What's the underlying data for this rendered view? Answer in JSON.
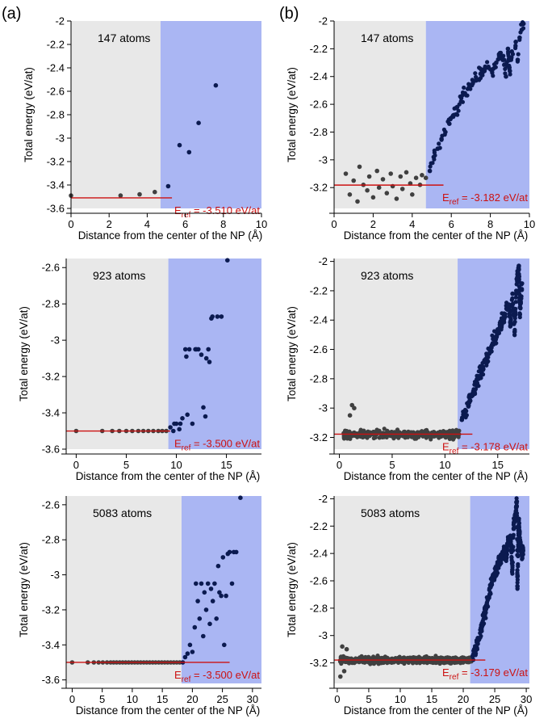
{
  "panel_labels": [
    "(a)",
    "(b)"
  ],
  "chart_data": [
    {
      "id": "a-147",
      "panel": "(a)",
      "type": "scatter",
      "title": "147 atoms",
      "xlabel": "Distance from the center of the NP (Å)",
      "ylabel": "Total energy (eV/at)",
      "xlim": [
        0,
        10
      ],
      "ylim": [
        -3.6,
        -2.0
      ],
      "xticks": [
        0,
        2,
        4,
        6,
        8,
        10
      ],
      "yticks": [
        -3.6,
        -3.4,
        -3.2,
        -3.0,
        -2.8,
        -2.6,
        -2.4,
        -2.2,
        -2.0
      ],
      "core_region_x": [
        0,
        4.7
      ],
      "eref": -3.51,
      "eref_text": "-3.510 eV/at",
      "eref_label_prefix": "E",
      "eref_label_sub": "ref",
      "eref_line_x": [
        0,
        5.3
      ],
      "points": [
        [
          0.0,
          -3.49
        ],
        [
          2.6,
          -3.49
        ],
        [
          3.6,
          -3.48
        ],
        [
          4.4,
          -3.46
        ],
        [
          5.1,
          -3.41
        ],
        [
          5.7,
          -3.06
        ],
        [
          6.2,
          -3.12
        ],
        [
          6.7,
          -2.87
        ],
        [
          7.6,
          -2.55
        ]
      ]
    },
    {
      "id": "b-147",
      "panel": "(b)",
      "type": "scatter",
      "title": "147 atoms",
      "xlabel": "Distance from the center of the NP (Å)",
      "ylabel": "Total energy (eV/at)",
      "xlim": [
        0,
        10
      ],
      "ylim": [
        -3.35,
        -2.0
      ],
      "xticks": [
        0,
        2,
        4,
        6,
        8,
        10
      ],
      "yticks": [
        -3.2,
        -3.0,
        -2.8,
        -2.6,
        -2.4,
        -2.2,
        -2.0
      ],
      "core_region_x": [
        0,
        4.7
      ],
      "eref": -3.182,
      "eref_text": "-3.182 eV/at",
      "eref_label_prefix": "E",
      "eref_label_sub": "ref",
      "eref_line_x": [
        0,
        5.6
      ],
      "points": [
        [
          0.6,
          -3.1
        ],
        [
          0.8,
          -3.25
        ],
        [
          1.0,
          -3.15
        ],
        [
          1.2,
          -3.3
        ],
        [
          1.3,
          -3.05
        ],
        [
          1.5,
          -3.18
        ],
        [
          1.7,
          -3.22
        ],
        [
          1.8,
          -3.12
        ],
        [
          2.0,
          -3.27
        ],
        [
          2.2,
          -3.08
        ],
        [
          2.3,
          -3.2
        ],
        [
          2.5,
          -3.14
        ],
        [
          2.7,
          -3.24
        ],
        [
          2.9,
          -3.1
        ],
        [
          3.0,
          -3.19
        ],
        [
          3.2,
          -3.28
        ],
        [
          3.4,
          -3.12
        ],
        [
          3.5,
          -3.21
        ],
        [
          3.7,
          -3.09
        ],
        [
          3.9,
          -3.17
        ],
        [
          4.0,
          -3.25
        ],
        [
          4.2,
          -3.13
        ],
        [
          4.4,
          -3.18
        ],
        [
          4.5,
          -3.11
        ],
        [
          4.7,
          -3.13
        ],
        [
          4.9,
          -3.08
        ],
        [
          5.1,
          -2.98
        ],
        [
          5.3,
          -2.92
        ],
        [
          5.5,
          -2.85
        ],
        [
          5.7,
          -2.8
        ],
        [
          5.9,
          -2.74
        ],
        [
          6.1,
          -2.68
        ],
        [
          6.3,
          -2.62
        ],
        [
          6.5,
          -2.58
        ],
        [
          6.7,
          -2.52
        ],
        [
          6.9,
          -2.48
        ],
        [
          7.1,
          -2.45
        ],
        [
          7.3,
          -2.42
        ],
        [
          7.5,
          -2.38
        ],
        [
          7.7,
          -2.36
        ],
        [
          7.9,
          -2.33
        ],
        [
          8.1,
          -2.35
        ],
        [
          8.3,
          -2.3
        ],
        [
          8.5,
          -2.25
        ],
        [
          8.7,
          -2.28
        ],
        [
          8.9,
          -2.2
        ],
        [
          9.1,
          -2.22
        ],
        [
          9.3,
          -2.15
        ],
        [
          9.5,
          -2.12
        ],
        [
          9.7,
          -2.02
        ],
        [
          9.0,
          -2.36
        ],
        [
          8.8,
          -2.4
        ],
        [
          9.4,
          -2.28
        ]
      ]
    },
    {
      "id": "a-923",
      "panel": "(a)",
      "type": "scatter",
      "title": "923 atoms",
      "xlabel": "Distance from the center of the NP (Å)",
      "ylabel": "Total energy (eV/at)",
      "xlim": [
        -1,
        18.5
      ],
      "ylim": [
        -3.6,
        -2.55
      ],
      "xticks": [
        0,
        5,
        10,
        15
      ],
      "yticks": [
        -3.6,
        -3.4,
        -3.2,
        -3.0,
        -2.8,
        -2.6
      ],
      "core_region_x": [
        -1,
        9.2
      ],
      "eref": -3.5,
      "eref_text": "-3.500 eV/at",
      "eref_label_prefix": "E",
      "eref_label_sub": "ref",
      "eref_line_x": [
        -1,
        9.4
      ],
      "points": [
        [
          0.0,
          -3.5
        ],
        [
          2.6,
          -3.5
        ],
        [
          3.6,
          -3.5
        ],
        [
          4.3,
          -3.5
        ],
        [
          5.0,
          -3.5
        ],
        [
          5.6,
          -3.5
        ],
        [
          6.2,
          -3.5
        ],
        [
          6.7,
          -3.5
        ],
        [
          7.2,
          -3.5
        ],
        [
          7.7,
          -3.5
        ],
        [
          8.2,
          -3.5
        ],
        [
          8.6,
          -3.5
        ],
        [
          9.0,
          -3.5
        ],
        [
          9.4,
          -3.48
        ],
        [
          9.7,
          -3.5
        ],
        [
          10.0,
          -3.46
        ],
        [
          10.3,
          -3.49
        ],
        [
          10.6,
          -3.43
        ],
        [
          10.9,
          -3.05
        ],
        [
          11.1,
          -3.41
        ],
        [
          11.3,
          -3.05
        ],
        [
          11.6,
          -3.46
        ],
        [
          11.9,
          -3.05
        ],
        [
          12.2,
          -3.05
        ],
        [
          12.5,
          -3.08
        ],
        [
          12.7,
          -3.37
        ],
        [
          13.0,
          -3.1
        ],
        [
          13.2,
          -3.05
        ],
        [
          13.5,
          -2.88
        ],
        [
          13.6,
          -2.87
        ],
        [
          14.1,
          -2.87
        ],
        [
          14.5,
          -2.87
        ],
        [
          15.1,
          -2.56
        ],
        [
          9.8,
          -3.46
        ],
        [
          10.4,
          -3.46
        ],
        [
          12.9,
          -3.42
        ],
        [
          11.0,
          -3.09
        ],
        [
          12.0,
          -3.05
        ],
        [
          13.3,
          -3.12
        ]
      ]
    },
    {
      "id": "b-923",
      "panel": "(b)",
      "type": "scatter",
      "title": "923 atoms",
      "xlabel": "Distance from the center of the NP (Å)",
      "ylabel": "Total energy (eV/at)",
      "xlim": [
        -0.5,
        18
      ],
      "ylim": [
        -3.28,
        -1.98
      ],
      "xticks": [
        0,
        5,
        10,
        15
      ],
      "yticks": [
        -3.2,
        -3.0,
        -2.8,
        -2.6,
        -2.4,
        -2.2,
        -2.0
      ],
      "core_region_x": [
        -0.5,
        11.2
      ],
      "eref": -3.178,
      "eref_text": "-3.178 eV/at",
      "eref_label_prefix": "E",
      "eref_label_sub": "ref",
      "eref_line_x": [
        -0.5,
        12.6
      ],
      "points": [
        [
          1.0,
          -3.05
        ],
        [
          1.2,
          -2.98
        ],
        [
          1.4,
          -3.0
        ],
        [
          11.6,
          -3.08
        ],
        [
          12.0,
          -3.02
        ],
        [
          12.4,
          -2.95
        ],
        [
          12.8,
          -2.88
        ],
        [
          13.2,
          -2.8
        ],
        [
          13.6,
          -2.72
        ],
        [
          14.0,
          -2.65
        ],
        [
          14.4,
          -2.58
        ],
        [
          14.8,
          -2.52
        ],
        [
          15.2,
          -2.45
        ],
        [
          15.6,
          -2.38
        ],
        [
          16.0,
          -2.3
        ],
        [
          16.4,
          -2.22
        ],
        [
          16.8,
          -2.12
        ],
        [
          17.0,
          -2.03
        ],
        [
          17.3,
          -2.15
        ],
        [
          16.2,
          -2.44
        ],
        [
          16.6,
          -2.48
        ],
        [
          17.1,
          -2.36
        ]
      ]
    },
    {
      "id": "a-5083",
      "panel": "(a)",
      "type": "scatter",
      "title": "5083 atoms",
      "xlabel": "Distance from the center of the NP (Å)",
      "ylabel": "Total energy (eV/at)",
      "xlim": [
        -1,
        31.5
      ],
      "ylim": [
        -3.62,
        -2.55
      ],
      "xticks": [
        0,
        5,
        10,
        15,
        20,
        25,
        30
      ],
      "yticks": [
        -3.6,
        -3.4,
        -3.2,
        -3.0,
        -2.8,
        -2.6
      ],
      "core_region_x": [
        -1,
        18.2
      ],
      "eref": -3.5,
      "eref_text": "-3.500 eV/at",
      "eref_label_prefix": "E",
      "eref_label_sub": "ref",
      "eref_line_x": [
        -1,
        26.2
      ],
      "points": [
        [
          0.0,
          -3.5
        ],
        [
          2.6,
          -3.5
        ],
        [
          3.6,
          -3.5
        ],
        [
          4.4,
          -3.5
        ],
        [
          5.1,
          -3.5
        ],
        [
          5.8,
          -3.5
        ],
        [
          6.4,
          -3.5
        ],
        [
          6.9,
          -3.5
        ],
        [
          7.4,
          -3.5
        ],
        [
          7.9,
          -3.5
        ],
        [
          8.4,
          -3.5
        ],
        [
          8.9,
          -3.5
        ],
        [
          9.4,
          -3.5
        ],
        [
          9.9,
          -3.5
        ],
        [
          10.4,
          -3.5
        ],
        [
          10.9,
          -3.5
        ],
        [
          11.4,
          -3.5
        ],
        [
          11.9,
          -3.5
        ],
        [
          12.4,
          -3.5
        ],
        [
          12.9,
          -3.5
        ],
        [
          13.4,
          -3.5
        ],
        [
          13.9,
          -3.5
        ],
        [
          14.4,
          -3.5
        ],
        [
          14.9,
          -3.5
        ],
        [
          15.4,
          -3.5
        ],
        [
          15.9,
          -3.5
        ],
        [
          16.4,
          -3.5
        ],
        [
          16.9,
          -3.5
        ],
        [
          17.4,
          -3.5
        ],
        [
          17.9,
          -3.5
        ],
        [
          18.4,
          -3.5
        ],
        [
          18.8,
          -3.47
        ],
        [
          19.2,
          -3.45
        ],
        [
          19.6,
          -3.4
        ],
        [
          20.0,
          -3.44
        ],
        [
          20.4,
          -3.3
        ],
        [
          20.6,
          -3.05
        ],
        [
          20.9,
          -3.15
        ],
        [
          21.2,
          -3.25
        ],
        [
          21.5,
          -3.05
        ],
        [
          21.8,
          -3.35
        ],
        [
          22.0,
          -3.1
        ],
        [
          22.3,
          -3.2
        ],
        [
          22.6,
          -3.05
        ],
        [
          22.9,
          -3.28
        ],
        [
          23.1,
          -3.08
        ],
        [
          23.4,
          -3.15
        ],
        [
          23.7,
          -3.05
        ],
        [
          24.0,
          -3.25
        ],
        [
          24.3,
          -2.95
        ],
        [
          24.5,
          -3.1
        ],
        [
          24.8,
          -3.12
        ],
        [
          25.1,
          -2.9
        ],
        [
          25.3,
          -3.4
        ],
        [
          25.6,
          -3.12
        ],
        [
          25.9,
          -2.88
        ],
        [
          26.2,
          -2.87
        ],
        [
          26.6,
          -3.05
        ],
        [
          26.9,
          -2.87
        ],
        [
          27.3,
          -2.87
        ],
        [
          28.0,
          -2.56
        ]
      ]
    },
    {
      "id": "b-5083",
      "panel": "(b)",
      "type": "scatter",
      "title": "5083 atoms",
      "xlabel": "Distance from the center of the NP (Å)",
      "ylabel": "Total energy (eV/at)",
      "xlim": [
        -0.5,
        30.5
      ],
      "ylim": [
        -3.35,
        -1.98
      ],
      "xticks": [
        0,
        5,
        10,
        15,
        20,
        25,
        30
      ],
      "yticks": [
        -3.2,
        -3.0,
        -2.8,
        -2.6,
        -2.4,
        -2.2,
        -2.0
      ],
      "core_region_x": [
        -0.5,
        21.1
      ],
      "eref": -3.179,
      "eref_text": "-3.179 eV/at",
      "eref_label_prefix": "E",
      "eref_label_sub": "ref",
      "eref_line_x": [
        -0.5,
        23.5
      ],
      "points": [
        [
          0.5,
          -3.3
        ],
        [
          0.8,
          -3.08
        ],
        [
          1.1,
          -3.26
        ],
        [
          1.5,
          -3.1
        ],
        [
          21.5,
          -3.15
        ],
        [
          22.0,
          -3.1
        ],
        [
          22.5,
          -3.02
        ],
        [
          23.0,
          -2.92
        ],
        [
          23.5,
          -2.82
        ],
        [
          24.0,
          -2.72
        ],
        [
          24.5,
          -2.62
        ],
        [
          25.0,
          -2.55
        ],
        [
          25.5,
          -2.48
        ],
        [
          26.0,
          -2.42
        ],
        [
          26.5,
          -2.38
        ],
        [
          27.0,
          -2.33
        ],
        [
          27.5,
          -2.28
        ],
        [
          28.0,
          -2.22
        ],
        [
          28.3,
          -2.12
        ],
        [
          28.5,
          -2.02
        ],
        [
          28.8,
          -2.16
        ],
        [
          29.0,
          -2.3
        ],
        [
          29.3,
          -2.4
        ],
        [
          28.6,
          -2.64
        ],
        [
          27.8,
          -2.52
        ],
        [
          26.8,
          -2.44
        ],
        [
          29.5,
          -2.38
        ]
      ]
    }
  ],
  "colors": {
    "core_region": "#e8e8e8",
    "shell_region": "#aab6f3",
    "core_points": "#404040",
    "shell_points": "#0b1a50",
    "eref": "#cc1111",
    "axis": "#000000"
  }
}
